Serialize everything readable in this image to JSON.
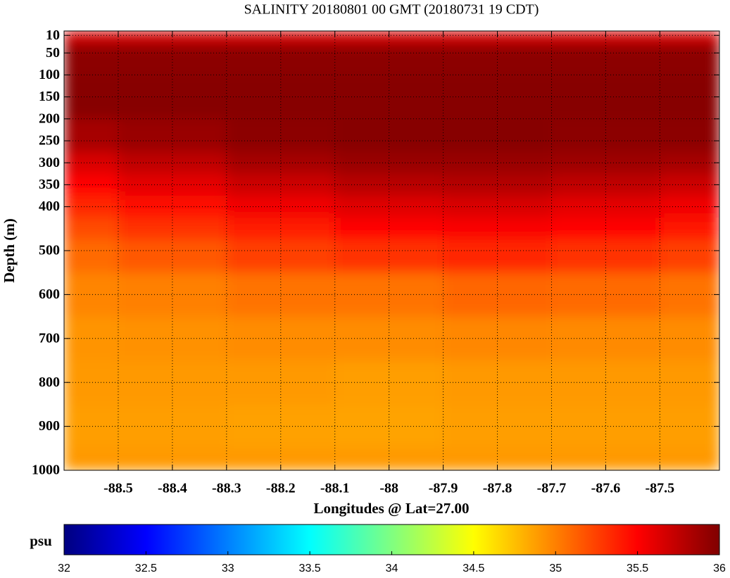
{
  "chart_data": {
    "type": "heatmap",
    "title": "SALINITY 20180801 00 GMT (20180731 19 CDT)",
    "x_label": "Longitudes @ Lat=27.00",
    "y_label": "Depth (m)",
    "x": [
      -88.6,
      -88.4,
      -88.2,
      -88.0,
      -87.8,
      -87.6,
      -87.4
    ],
    "y": [
      0,
      10,
      50,
      150,
      250,
      300,
      350,
      400,
      450,
      500,
      600,
      700,
      800,
      900,
      1000
    ],
    "z": [
      [
        35.55,
        35.55,
        35.55,
        35.55,
        35.55,
        35.55,
        35.55
      ],
      [
        35.7,
        35.7,
        35.7,
        35.7,
        35.7,
        35.7,
        35.7
      ],
      [
        35.95,
        35.95,
        35.95,
        35.95,
        35.95,
        35.95,
        35.95
      ],
      [
        35.97,
        35.97,
        35.97,
        35.97,
        35.97,
        35.97,
        35.97
      ],
      [
        35.85,
        35.9,
        35.95,
        35.97,
        35.97,
        35.95,
        35.95
      ],
      [
        35.65,
        35.75,
        35.85,
        35.9,
        35.9,
        35.88,
        35.85
      ],
      [
        35.5,
        35.6,
        35.7,
        35.78,
        35.8,
        35.75,
        35.7
      ],
      [
        35.35,
        35.45,
        35.55,
        35.62,
        35.65,
        35.6,
        35.55
      ],
      [
        35.2,
        35.3,
        35.4,
        35.48,
        35.52,
        35.48,
        35.42
      ],
      [
        35.08,
        35.15,
        35.25,
        35.3,
        35.35,
        35.3,
        35.25
      ],
      [
        34.98,
        35.0,
        35.05,
        35.05,
        35.1,
        35.08,
        35.05
      ],
      [
        34.92,
        34.93,
        34.95,
        34.95,
        34.97,
        34.96,
        34.95
      ],
      [
        34.9,
        34.9,
        34.9,
        34.88,
        34.9,
        34.9,
        34.9
      ],
      [
        34.88,
        34.88,
        34.87,
        34.86,
        34.88,
        34.88,
        34.88
      ],
      [
        34.9,
        34.9,
        34.9,
        34.9,
        34.9,
        34.9,
        34.9
      ]
    ],
    "xlim": [
      -88.6,
      -87.39
    ],
    "ylim": [
      0,
      1000
    ],
    "xticks": [
      -88.5,
      -88.4,
      -88.3,
      -88.2,
      -88.1,
      -88,
      -87.9,
      -87.8,
      -87.7,
      -87.6,
      -87.5
    ],
    "yticks": [
      10,
      50,
      100,
      150,
      200,
      250,
      300,
      350,
      400,
      500,
      600,
      700,
      800,
      900,
      1000
    ],
    "grid": true,
    "colormap": "jet",
    "colorbar_label": "psu",
    "clim": [
      32,
      36
    ],
    "cticks": [
      32,
      32.5,
      33,
      33.5,
      34,
      34.5,
      35,
      35.5,
      36
    ]
  }
}
